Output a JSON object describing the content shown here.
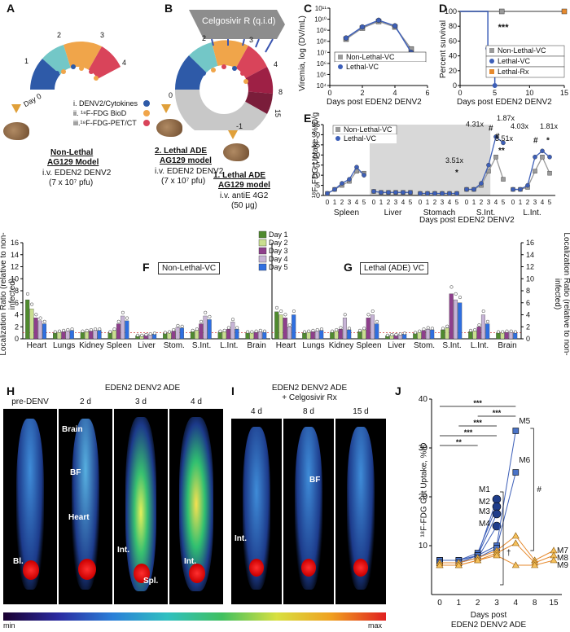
{
  "panels": {
    "A": {
      "label": "A",
      "wheel_numbers": [
        "1",
        "2",
        "3",
        "4"
      ],
      "day_label": "Day 0",
      "legend": [
        "i. DENV2/Cytokines",
        "ii. ¹⁸F-FDG BioD",
        "iii.¹⁸F-FDG-PET/CT"
      ],
      "legend_colors": [
        "#2e5aa8",
        "#f0a54a",
        "#d9445a"
      ],
      "model_title": [
        "Non-Lethal",
        "AG129 Model"
      ],
      "model_sub": [
        "i.v. EDEN2 DENV2",
        "(7 x 10⁷ pfu)"
      ]
    },
    "B": {
      "label": "B",
      "drug_label": "Celgosivir R (q.i.d)",
      "wheel_numbers": [
        "0",
        "2",
        "3",
        "4",
        "8",
        "15"
      ],
      "minus_one": "-1",
      "model2_title": [
        "2. Lethal ADE",
        "AG129 model"
      ],
      "model2_sub": [
        "i.v. EDEN2 DENV2",
        "(7 x 10⁷ pfu)"
      ],
      "model1_title": [
        "1. Lethal ADE",
        "AG129 model"
      ],
      "model1_sub": [
        "i.v. antiE 4G2",
        "(50 μg)"
      ]
    },
    "C": {
      "label": "C",
      "ylabel": "Viremia, log (DV/mL)",
      "xlabel": "Days post EDEN2 DENV2",
      "yticks": [
        "10⁴",
        "10⁵",
        "10⁶",
        "10⁷",
        "10⁸",
        "10⁹",
        "10¹⁰",
        "10¹¹"
      ],
      "xticks": [
        "0",
        "2",
        "4",
        "6"
      ],
      "legend": [
        "Non-Lethal-VC",
        "Lethal-VC"
      ]
    },
    "D": {
      "label": "D",
      "ylabel": "Percent survival",
      "xlabel": "Days post EDEN2 DENV2",
      "yticks": [
        "0",
        "20",
        "40",
        "60",
        "80",
        "100"
      ],
      "xticks": [
        "0",
        "5",
        "10",
        "15"
      ],
      "sig": "***",
      "legend": [
        "Non-Lethal-VC",
        "Lethal-VC",
        "Lethal-Rx"
      ]
    },
    "E": {
      "label": "E",
      "ylabel": "¹⁸F-FDG Uptake, %ID/g",
      "xlabel": "Days post EDEN2 DENV2",
      "yticks": [
        "0",
        "5",
        "10",
        "15",
        "20",
        "25",
        "30",
        "35"
      ],
      "groups": [
        "Spleen",
        "Liver",
        "Stomach",
        "S.Int.",
        "L.Int."
      ],
      "day_ticks": [
        "0",
        "1",
        "2",
        "3",
        "4",
        "5"
      ],
      "legend": [
        "Non-Lethal-VC",
        "Lethal-VC"
      ],
      "annotations": [
        "3.51x",
        "4.31x",
        "1.87x",
        "3.51x",
        "4.03x",
        "1.81x"
      ],
      "marks": [
        "*",
        "#",
        "#",
        "**",
        "#",
        "*"
      ]
    },
    "F": {
      "label": "F",
      "title": "Non-Lethal-VC",
      "ylabel": "Localization Ratio (relative to non-infected)",
      "yticks": [
        "0",
        "2",
        "4",
        "6",
        "8",
        "10",
        "12",
        "14",
        "16"
      ],
      "organs": [
        "Heart",
        "Lungs",
        "Kidney",
        "Spleen",
        "Liver",
        "Stom.",
        "S.Int.",
        "L.Int.",
        "Brain"
      ]
    },
    "G": {
      "label": "G",
      "title": "Lethal (ADE) VC",
      "ylabel": "Localization Ratio (relative to non-infected)",
      "organs": [
        "Heart",
        "Lungs",
        "Kidney",
        "Spleen",
        "Liver",
        "Stom.",
        "S.Int.",
        "L.Int.",
        "Brain"
      ]
    },
    "FG_legend": [
      "Day 1",
      "Day 2",
      "Day 3",
      "Day 4",
      "Day 5"
    ],
    "FG_colors": [
      "#4f8a2e",
      "#c9de8f",
      "#8e3f8c",
      "#c7b4d6",
      "#2f6fe0"
    ],
    "H": {
      "label": "H",
      "header": "EDEN2 DENV2 ADE",
      "titles": [
        "pre-DENV",
        "2 d",
        "3 d",
        "4 d"
      ],
      "anno": [
        "Brain",
        "BF",
        "Heart",
        "Bl.",
        "Int.",
        "Spl.",
        "Int."
      ]
    },
    "I": {
      "label": "I",
      "header": [
        "EDEN2 DENV2 ADE",
        "+ Celgosivir Rx"
      ],
      "titles": [
        "4 d",
        "8 d",
        "15 d"
      ],
      "anno": [
        "Int.",
        "BF"
      ]
    },
    "J": {
      "label": "J",
      "ylabel": "¹⁸F-FDG Gut Uptake,  %ID",
      "xlabel": [
        "Days post",
        "EDEN2 DENV2 ADE"
      ],
      "yticks": [
        "10",
        "20",
        "30",
        "40"
      ],
      "xticks": [
        "0",
        "1",
        "2",
        "3",
        "4",
        "8",
        "15"
      ],
      "mice": [
        "M1",
        "M2",
        "M3",
        "M4",
        "M5",
        "M6",
        "M7",
        "M8",
        "M9"
      ],
      "sig": [
        "***",
        "***",
        "***",
        "***",
        "**",
        "#",
        "†"
      ]
    },
    "colorbar": {
      "min": "min",
      "max": "max"
    }
  },
  "chart_data": [
    {
      "type": "line",
      "id": "C",
      "x": [
        1,
        2,
        3,
        4,
        5
      ],
      "series": [
        {
          "name": "Non-Lethal-VC",
          "values": [
            8.2,
            9.2,
            9.8,
            9.3,
            7.3
          ]
        },
        {
          "name": "Lethal-VC",
          "values": [
            8.3,
            9.3,
            9.9,
            9.4,
            7.0
          ]
        }
      ],
      "xlim": [
        0,
        6
      ],
      "ylim": [
        4,
        11
      ],
      "ylog": true
    },
    {
      "type": "line",
      "id": "D",
      "series": [
        {
          "name": "Non-Lethal-VC",
          "x": [
            0,
            15
          ],
          "values": [
            100,
            100
          ]
        },
        {
          "name": "Lethal-VC",
          "x": [
            0,
            4,
            4,
            5,
            5
          ],
          "values": [
            100,
            100,
            50,
            50,
            0
          ]
        },
        {
          "name": "Lethal-Rx",
          "x": [
            0,
            15
          ],
          "values": [
            100,
            100
          ]
        }
      ],
      "xlim": [
        0,
        15
      ],
      "ylim": [
        0,
        100
      ]
    },
    {
      "type": "line",
      "id": "E",
      "groups": [
        "Spleen",
        "Liver",
        "Stomach",
        "S.Int.",
        "L.Int."
      ],
      "x": [
        0,
        1,
        2,
        3,
        4,
        5
      ],
      "series": [
        {
          "name": "Non-Lethal-VC",
          "values": [
            [
              1,
              3,
              5,
              7,
              12,
              11
            ],
            [
              2,
              1.5,
              1.5,
              1.5,
              1.5,
              1.5
            ],
            [
              1,
              1,
              1,
              1,
              1,
              1
            ],
            [
              3,
              3,
              5,
              12,
              19,
              8
            ],
            [
              3,
              3,
              4,
              12,
              19,
              11
            ]
          ]
        },
        {
          "name": "Lethal-VC",
          "values": [
            [
              1,
              3,
              6,
              8,
              14,
              10
            ],
            [
              2,
              1.5,
              1.5,
              1.5,
              1.5,
              1.5
            ],
            [
              1,
              1,
              1,
              1,
              1,
              1
            ],
            [
              3,
              3,
              6,
              15,
              29,
              26
            ],
            [
              3,
              3,
              5,
              19,
              22,
              19
            ]
          ]
        }
      ],
      "ylim": [
        0,
        35
      ]
    },
    {
      "type": "bar",
      "id": "F",
      "categories": [
        "Heart",
        "Lungs",
        "Kidney",
        "Spleen",
        "Liver",
        "Stom.",
        "S.Int.",
        "L.Int.",
        "Brain"
      ],
      "series": [
        {
          "name": "Day 1",
          "values": [
            6.5,
            1.0,
            1.1,
            1.0,
            0.5,
            0.9,
            1.2,
            1.1,
            1.0
          ]
        },
        {
          "name": "Day 2",
          "values": [
            5.0,
            1.1,
            1.2,
            1.4,
            0.5,
            1.0,
            1.4,
            1.2,
            1.0
          ]
        },
        {
          "name": "Day 3",
          "values": [
            3.5,
            1.2,
            1.3,
            2.5,
            0.6,
            1.3,
            2.5,
            1.6,
            1.1
          ]
        },
        {
          "name": "Day 4",
          "values": [
            3.0,
            1.3,
            1.4,
            3.8,
            0.7,
            1.9,
            3.8,
            2.8,
            1.2
          ]
        },
        {
          "name": "Day 5",
          "values": [
            2.5,
            1.4,
            1.4,
            3.0,
            0.8,
            1.8,
            3.2,
            1.6,
            1.1
          ]
        }
      ],
      "ylim": [
        0,
        16
      ]
    },
    {
      "type": "bar",
      "id": "G",
      "categories": [
        "Heart",
        "Lungs",
        "Kidney",
        "Spleen",
        "Liver",
        "Stom.",
        "S.Int.",
        "L.Int.",
        "Brain"
      ],
      "series": [
        {
          "name": "Day 1",
          "values": [
            4.5,
            1.0,
            1.1,
            1.2,
            0.5,
            0.9,
            1.5,
            1.2,
            1.0
          ]
        },
        {
          "name": "Day 2",
          "values": [
            4.0,
            1.1,
            1.3,
            1.5,
            0.6,
            1.1,
            1.8,
            1.3,
            1.0
          ]
        },
        {
          "name": "Day 3",
          "values": [
            3.5,
            1.2,
            1.6,
            3.5,
            0.6,
            1.4,
            7.5,
            2.0,
            1.1
          ]
        },
        {
          "name": "Day 4",
          "values": [
            2.0,
            1.3,
            3.5,
            4.0,
            0.7,
            1.6,
            6.5,
            4.0,
            1.1
          ]
        },
        {
          "name": "Day 5",
          "values": [
            4.0,
            1.4,
            1.5,
            2.5,
            0.8,
            1.5,
            6.0,
            2.5,
            1.0
          ]
        }
      ],
      "ylim": [
        0,
        16
      ]
    },
    {
      "type": "line",
      "id": "J",
      "x": [
        0,
        1,
        2,
        3,
        4,
        8,
        15
      ],
      "series": [
        {
          "name": "M1",
          "values": [
            7,
            7,
            8,
            19.5,
            null,
            null,
            null
          ]
        },
        {
          "name": "M2",
          "values": [
            7,
            7,
            8.5,
            18,
            null,
            null,
            null
          ]
        },
        {
          "name": "M3",
          "values": [
            6.5,
            6.5,
            8,
            16.5,
            null,
            null,
            null
          ]
        },
        {
          "name": "M4",
          "values": [
            6.5,
            6.5,
            7.5,
            14,
            null,
            null,
            null
          ]
        },
        {
          "name": "M5",
          "values": [
            7,
            7,
            8,
            10,
            33.5,
            null,
            null
          ]
        },
        {
          "name": "M6",
          "values": [
            6.5,
            6.5,
            7.5,
            9.5,
            25,
            null,
            null
          ]
        },
        {
          "name": "M7",
          "values": [
            6.5,
            6.5,
            7.5,
            9,
            12,
            7,
            9
          ]
        },
        {
          "name": "M8",
          "values": [
            6,
            6,
            7,
            8.5,
            10.5,
            6.5,
            8
          ]
        },
        {
          "name": "M9",
          "values": [
            6,
            6,
            7,
            8,
            6,
            6,
            7
          ]
        }
      ],
      "ylim": [
        0,
        40
      ]
    }
  ]
}
